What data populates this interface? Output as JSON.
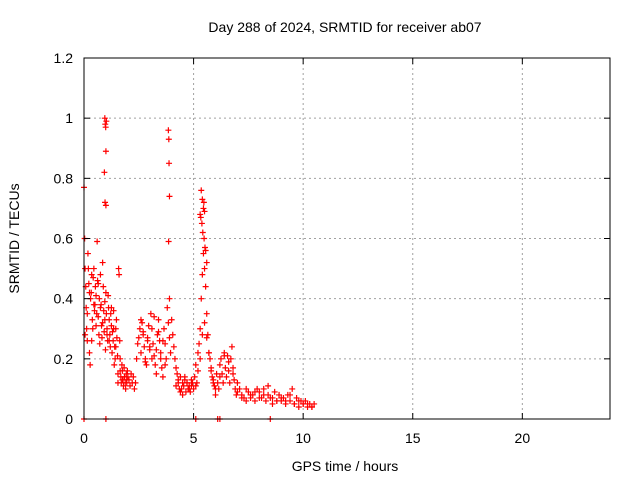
{
  "chart_data": {
    "type": "scatter",
    "title": "Day 288 of 2024, SRMTID for receiver ab07",
    "xlabel": "GPS time / hours",
    "ylabel": "SRMTID / TECUs",
    "xlim": [
      0,
      24
    ],
    "ylim": [
      0,
      1.2
    ],
    "xticks": [
      0,
      5,
      10,
      15,
      20
    ],
    "xtick_labels": [
      "0",
      "5",
      "10",
      "15",
      "20"
    ],
    "yticks": [
      0,
      0.2,
      0.4,
      0.6,
      0.8,
      1.0,
      1.2
    ],
    "ytick_labels": [
      "0",
      "0.2",
      "0.4",
      "0.6",
      "0.8",
      "1",
      "1.2"
    ],
    "grid": true,
    "marker": "plus",
    "series": [
      {
        "name": "SRMTID",
        "color": "#ff0000",
        "x": [
          0.0,
          0.03,
          0.05,
          0.08,
          0.1,
          0.12,
          0.15,
          0.18,
          0.2,
          0.22,
          0.25,
          0.28,
          0.3,
          0.33,
          0.35,
          0.38,
          0.4,
          0.42,
          0.45,
          0.48,
          0.5,
          0.52,
          0.55,
          0.58,
          0.6,
          0.62,
          0.65,
          0.68,
          0.7,
          0.72,
          0.75,
          0.78,
          0.8,
          0.82,
          0.85,
          0.88,
          0.9,
          0.92,
          0.95,
          0.98,
          1.0,
          1.02,
          1.05,
          1.08,
          1.1,
          1.12,
          1.15,
          1.18,
          1.2,
          1.22,
          1.25,
          1.28,
          1.3,
          1.33,
          1.35,
          1.38,
          1.4,
          1.42,
          1.45,
          1.48,
          1.5,
          1.53,
          1.55,
          1.58,
          1.6,
          1.63,
          1.65,
          1.68,
          1.7,
          1.73,
          1.75,
          1.78,
          1.8,
          1.83,
          1.85,
          1.88,
          1.9,
          1.93,
          1.95,
          1.98,
          2.0,
          2.05,
          2.1,
          2.15,
          2.2,
          2.25,
          2.3,
          2.35,
          2.4,
          2.45,
          2.5,
          2.55,
          2.6,
          2.65,
          2.7,
          2.75,
          2.8,
          2.85,
          2.9,
          2.95,
          3.0,
          3.05,
          3.1,
          3.15,
          3.2,
          3.25,
          3.3,
          3.35,
          3.4,
          3.45,
          3.5,
          3.55,
          3.6,
          3.65,
          3.7,
          3.75,
          3.8,
          3.85,
          3.9,
          3.95,
          4.0,
          4.05,
          4.1,
          4.15,
          4.2,
          4.25,
          4.3,
          4.35,
          4.4,
          4.45,
          4.5,
          4.55,
          4.6,
          4.65,
          4.7,
          4.75,
          4.8,
          4.85,
          4.9,
          4.95,
          5.0,
          5.05,
          5.1,
          5.15,
          5.2,
          5.25,
          5.3,
          5.35,
          5.4,
          5.45,
          5.5,
          5.55,
          5.6,
          5.65,
          5.7,
          5.75,
          5.8,
          5.85,
          5.9,
          5.95,
          6.0,
          6.05,
          6.1,
          6.15,
          6.2,
          6.25,
          6.3,
          6.35,
          6.4,
          6.45,
          6.5,
          6.55,
          6.6,
          6.65,
          6.7,
          6.75,
          6.8,
          6.85,
          6.9,
          6.95,
          7.0,
          7.1,
          7.2,
          7.3,
          7.4,
          7.5,
          7.6,
          7.7,
          7.8,
          7.9,
          8.0,
          8.1,
          8.2,
          8.3,
          8.4,
          8.5,
          8.6,
          8.7,
          8.8,
          8.9,
          9.0,
          9.1,
          9.2,
          9.3,
          9.4,
          9.5,
          9.6,
          9.7,
          9.8,
          9.9,
          10.0,
          10.1,
          10.2,
          10.3,
          10.4,
          10.5,
          0.05,
          0.15,
          0.25,
          0.35,
          0.45,
          0.55,
          0.65,
          0.75,
          0.85,
          0.95,
          1.05,
          1.15,
          1.25,
          1.35,
          1.45,
          1.55,
          1.65,
          1.75,
          1.85,
          1.95,
          2.6,
          2.7,
          2.8,
          2.9,
          3.0,
          3.1,
          3.2,
          3.3,
          3.4,
          3.5,
          3.6,
          3.7,
          4.2,
          4.3,
          4.4,
          4.5,
          4.6,
          4.7,
          4.8,
          4.9,
          5.1,
          5.2,
          5.3,
          5.4,
          5.5,
          5.6,
          5.7,
          5.8,
          5.9,
          6.0,
          6.2,
          6.4,
          6.6,
          6.8,
          7.0,
          7.2,
          7.4,
          7.6,
          7.8,
          8.0,
          8.2,
          8.4,
          8.6,
          8.8,
          9.0,
          9.2,
          9.4,
          9.6,
          9.8,
          10.0,
          10.2,
          10.4,
          0.95,
          0.97,
          0.99,
          1.0,
          0.93,
          0.96,
          1.0,
          1.02,
          3.85,
          3.87,
          3.88,
          3.9,
          3.86,
          3.9,
          5.35,
          5.4,
          5.45,
          5.5,
          5.38,
          5.42,
          5.48,
          5.52,
          5.3,
          5.55,
          5.6,
          5.33,
          5.47,
          0.0,
          1.0,
          5.1,
          6.1,
          6.2,
          8.5
        ],
        "y": [
          0.77,
          0.6,
          0.5,
          0.44,
          0.37,
          0.3,
          0.26,
          0.55,
          0.5,
          0.45,
          0.22,
          0.18,
          0.4,
          0.42,
          0.48,
          0.33,
          0.3,
          0.47,
          0.5,
          0.36,
          0.38,
          0.44,
          0.41,
          0.35,
          0.59,
          0.46,
          0.34,
          0.28,
          0.4,
          0.25,
          0.48,
          0.38,
          0.31,
          0.27,
          0.52,
          0.44,
          0.36,
          0.29,
          0.33,
          0.23,
          0.42,
          0.35,
          0.3,
          0.26,
          0.41,
          0.37,
          0.33,
          0.28,
          0.24,
          0.35,
          0.31,
          0.22,
          0.29,
          0.26,
          0.36,
          0.18,
          0.24,
          0.2,
          0.3,
          0.33,
          0.27,
          0.21,
          0.15,
          0.5,
          0.48,
          0.26,
          0.2,
          0.14,
          0.12,
          0.18,
          0.16,
          0.13,
          0.11,
          0.17,
          0.14,
          0.12,
          0.1,
          0.15,
          0.13,
          0.16,
          0.14,
          0.13,
          0.11,
          0.15,
          0.12,
          0.14,
          0.1,
          0.12,
          0.2,
          0.25,
          0.27,
          0.3,
          0.22,
          0.32,
          0.28,
          0.24,
          0.2,
          0.18,
          0.26,
          0.31,
          0.23,
          0.35,
          0.3,
          0.25,
          0.21,
          0.18,
          0.15,
          0.28,
          0.33,
          0.26,
          0.2,
          0.17,
          0.14,
          0.3,
          0.25,
          0.2,
          0.37,
          0.32,
          0.27,
          0.22,
          0.33,
          0.28,
          0.24,
          0.2,
          0.17,
          0.15,
          0.12,
          0.1,
          0.14,
          0.1,
          0.08,
          0.11,
          0.13,
          0.09,
          0.12,
          0.1,
          0.11,
          0.09,
          0.13,
          0.12,
          0.1,
          0.14,
          0.18,
          0.12,
          0.22,
          0.25,
          0.3,
          0.4,
          0.48,
          0.55,
          0.5,
          0.44,
          0.35,
          0.28,
          0.22,
          0.2,
          0.16,
          0.14,
          0.12,
          0.11,
          0.1,
          0.15,
          0.12,
          0.1,
          0.18,
          0.2,
          0.15,
          0.12,
          0.22,
          0.17,
          0.14,
          0.21,
          0.16,
          0.12,
          0.2,
          0.24,
          0.17,
          0.13,
          0.1,
          0.08,
          0.12,
          0.1,
          0.08,
          0.07,
          0.06,
          0.09,
          0.07,
          0.08,
          0.06,
          0.1,
          0.09,
          0.07,
          0.08,
          0.06,
          0.11,
          0.07,
          0.05,
          0.09,
          0.06,
          0.08,
          0.06,
          0.07,
          0.05,
          0.08,
          0.06,
          0.1,
          0.05,
          0.07,
          0.04,
          0.06,
          0.05,
          0.06,
          0.04,
          0.05,
          0.04,
          0.05,
          0.28,
          0.35,
          0.42,
          0.26,
          0.38,
          0.31,
          0.45,
          0.37,
          0.32,
          0.39,
          0.28,
          0.26,
          0.37,
          0.3,
          0.24,
          0.12,
          0.16,
          0.13,
          0.14,
          0.12,
          0.33,
          0.29,
          0.19,
          0.27,
          0.24,
          0.2,
          0.34,
          0.23,
          0.29,
          0.22,
          0.26,
          0.18,
          0.11,
          0.13,
          0.09,
          0.12,
          0.14,
          0.12,
          0.1,
          0.11,
          0.11,
          0.16,
          0.2,
          0.28,
          0.32,
          0.27,
          0.22,
          0.17,
          0.13,
          0.08,
          0.14,
          0.21,
          0.19,
          0.15,
          0.09,
          0.07,
          0.1,
          0.08,
          0.09,
          0.07,
          0.1,
          0.08,
          0.07,
          0.06,
          0.07,
          0.06,
          0.08,
          0.05,
          0.06,
          0.05,
          0.05,
          0.04,
          1.0,
          0.98,
          0.97,
          0.89,
          0.82,
          0.72,
          0.71,
          0.99,
          0.96,
          0.93,
          0.85,
          0.74,
          0.59,
          0.4,
          0.76,
          0.73,
          0.7,
          0.69,
          0.65,
          0.62,
          0.6,
          0.57,
          0.68,
          0.56,
          0.52,
          0.67,
          0.72,
          0.0,
          0.0,
          0.0,
          0.0,
          0.0,
          0.0
        ]
      }
    ]
  }
}
